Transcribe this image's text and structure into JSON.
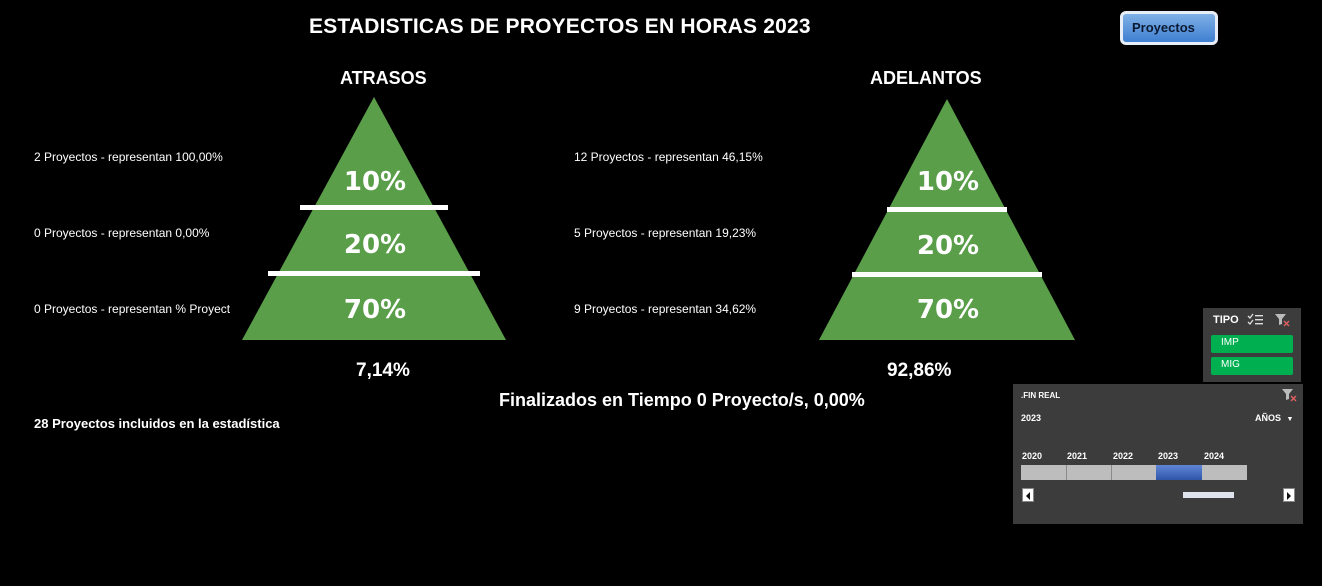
{
  "header": {
    "title": "ESTADISTICAS DE PROYECTOS EN HORAS 2023",
    "proyectos_button": "Proyectos"
  },
  "colors": {
    "pyramid_green": "#5a9e4a",
    "slicer_green": "#00b050",
    "timeline_blue": "#3f6cc4"
  },
  "atrasos": {
    "title": "ATRASOS",
    "rows": [
      "2 Proyectos - representan 100,00%",
      "0 Proyectos - representan 0,00%",
      "0 Proyectos - representan % Proyect"
    ],
    "levels": [
      "10%",
      "20%",
      "70%"
    ],
    "percentage": "7,14%"
  },
  "adelantos": {
    "title": "ADELANTOS",
    "rows": [
      "12 Proyectos - representan 46,15%",
      "5 Proyectos - representan 19,23%",
      "9 Proyectos - representan 34,62%"
    ],
    "levels": [
      "10%",
      "20%",
      "70%"
    ],
    "percentage": "92,86%"
  },
  "finalizados_text": "Finalizados en Tiempo 0 Proyecto/s,  0,00%",
  "total_text": "28 Proyectos incluidos en la estadística",
  "tipo_slicer": {
    "title": "TIPO",
    "items": [
      "IMP",
      "MIG"
    ],
    "icons": [
      "multi-select-icon",
      "clear-filter-icon"
    ]
  },
  "fin_real_slicer": {
    "title": ".FIN REAL",
    "selected": "2023",
    "period": "AÑOS",
    "years": [
      "2020",
      "2021",
      "2022",
      "2023",
      "2024"
    ],
    "selected_year": "2023"
  }
}
